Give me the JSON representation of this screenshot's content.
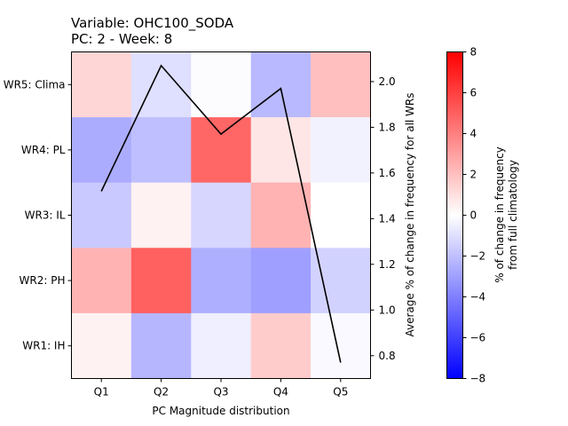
{
  "chart_data": {
    "type": "heatmap",
    "title_line1": "Variable: OHC100_SODA",
    "title_line2": "PC: 2 - Week: 8",
    "xlabel": "PC Magnitude distribution",
    "y2label": "Average % of change in frequency for all WRs",
    "colorbar_label_line1": "% of change in frequency",
    "colorbar_label_line2": "from full climatology",
    "x_categories": [
      "Q1",
      "Q2",
      "Q3",
      "Q4",
      "Q5"
    ],
    "y_categories": [
      "WR5: Clima",
      "WR4: PL",
      "WR3: IL",
      "WR2: PH",
      "WR1: IH"
    ],
    "values": [
      [
        1.3,
        -1.0,
        -0.1,
        -2.2,
        2.0
      ],
      [
        -2.6,
        -2.0,
        4.8,
        0.8,
        -0.4
      ],
      [
        -1.7,
        0.4,
        -1.3,
        2.4,
        0.0
      ],
      [
        2.4,
        5.0,
        -2.5,
        -3.0,
        -1.4
      ],
      [
        0.4,
        -2.3,
        -0.5,
        1.6,
        -0.2
      ]
    ],
    "color_range": [
      -8,
      8
    ],
    "colorbar_ticks": [
      "−8",
      "−6",
      "−4",
      "−2",
      "0",
      "2",
      "4",
      "6",
      "8"
    ],
    "colorbar_tick_values": [
      -8,
      -6,
      -4,
      -2,
      0,
      2,
      4,
      6,
      8
    ],
    "line_series": {
      "x": [
        "Q1",
        "Q2",
        "Q3",
        "Q4",
        "Q5"
      ],
      "values": [
        1.52,
        2.07,
        1.77,
        1.97,
        0.77
      ]
    },
    "y2lim": [
      0.7,
      2.13
    ],
    "y2_ticks": [
      "0.8",
      "1.0",
      "1.2",
      "1.4",
      "1.6",
      "1.8",
      "2.0"
    ],
    "y2_tick_values": [
      0.8,
      1.0,
      1.2,
      1.4,
      1.6,
      1.8,
      2.0
    ],
    "colors": {
      "low": "#0000ff",
      "mid": "#ffffff",
      "high": "#ff0000",
      "line": "#000000"
    }
  }
}
